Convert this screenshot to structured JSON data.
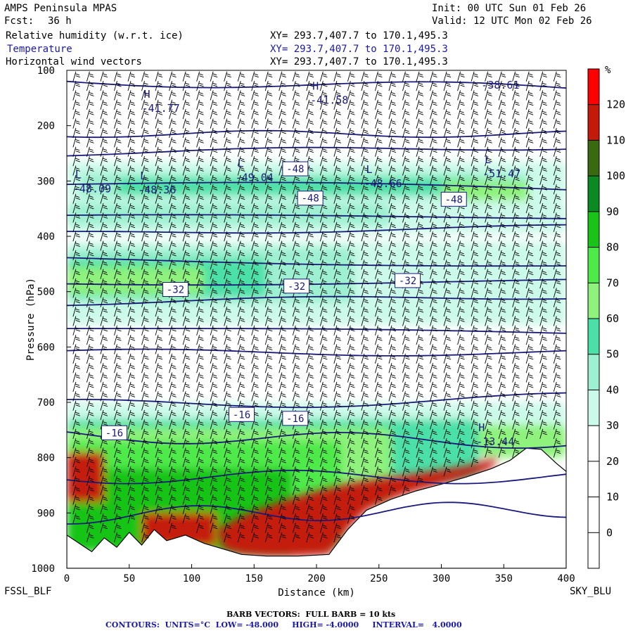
{
  "header": {
    "model": "AMPS Peninsula MPAS",
    "fcst_label": "Fcst:",
    "fcst_value": "36 h",
    "init": "Init: 00 UTC Sun 01 Feb 26",
    "valid": "Valid: 12 UTC Mon 02 Feb 26"
  },
  "fields": [
    {
      "label": "Relative humidity (w.r.t. ice)",
      "xy": "XY= 293.7,407.7 to 170.1,495.3",
      "color": "#000000"
    },
    {
      "label": "Temperature",
      "xy": "XY= 293.7,407.7 to 170.1,495.3",
      "color": "#1a1aa6"
    },
    {
      "label": "Horizontal wind vectors",
      "xy": "XY= 293.7,407.7 to 170.1,495.3",
      "color": "#000000"
    }
  ],
  "footer": {
    "left_station": "FSSL_BLF",
    "right_station": "SKY_BLU",
    "barb_note": "BARB VECTORS:  FULL BARB = 10 kts",
    "contours_note": "CONTOURS:  UNITS=°C  LOW= -48.000     HIGH= -4.0000     INTERVAL=   4.0000"
  },
  "chart_data": {
    "type": "heatmap",
    "xlabel": "Distance (km)",
    "ylabel": "Pressure (hPa)",
    "xlim": [
      0,
      400
    ],
    "ylim": [
      1000,
      100
    ],
    "xticks": [
      0,
      50,
      100,
      150,
      200,
      250,
      300,
      350,
      400
    ],
    "yticks": [
      100,
      200,
      300,
      400,
      500,
      600,
      700,
      800,
      900,
      1000
    ],
    "colorbar": {
      "unit": "%",
      "levels": [
        0,
        10,
        20,
        30,
        40,
        50,
        60,
        70,
        80,
        90,
        100,
        110,
        120
      ],
      "bands": [
        {
          "range": "<0",
          "color": "#ffffff"
        },
        {
          "range": "0-10",
          "color": "#ffffff"
        },
        {
          "range": "10-20",
          "color": "#ffffff"
        },
        {
          "range": "20-30",
          "color": "#ffffff"
        },
        {
          "range": "30-40",
          "color": "#ccfaea"
        },
        {
          "range": "40-50",
          "color": "#9ef0d2"
        },
        {
          "range": "50-60",
          "color": "#4be0a8"
        },
        {
          "range": "60-70",
          "color": "#8ef27c"
        },
        {
          "range": "70-80",
          "color": "#4eea4a"
        },
        {
          "range": "80-90",
          "color": "#18c418"
        },
        {
          "range": "90-100",
          "color": "#0c8a22"
        },
        {
          "range": "100-110",
          "color": "#3a6a10"
        },
        {
          "range": "110-120",
          "color": "#c41a0a"
        },
        {
          "range": ">120",
          "color": "#ff0000"
        }
      ]
    },
    "temperature_contours_c": [
      -48,
      -44,
      -40,
      -36,
      -32,
      -28,
      -24,
      -20,
      -16,
      -12,
      -8,
      -4
    ],
    "contour_labels": [
      {
        "text": "-48",
        "x": 183,
        "p": 278
      },
      {
        "text": "-48",
        "x": 195,
        "p": 331
      },
      {
        "text": "-48",
        "x": 310,
        "p": 333
      },
      {
        "text": "-32",
        "x": 87,
        "p": 496
      },
      {
        "text": "-32",
        "x": 184,
        "p": 490
      },
      {
        "text": "-32",
        "x": 273,
        "p": 480
      },
      {
        "text": "-16",
        "x": 140,
        "p": 722
      },
      {
        "text": "-16",
        "x": 183,
        "p": 729
      },
      {
        "text": "-16",
        "x": 38,
        "p": 755
      }
    ],
    "extrema": [
      {
        "kind": "H",
        "value": "-41.77",
        "x": 60,
        "p": 160
      },
      {
        "kind": "H",
        "value": "-41.58",
        "x": 195,
        "p": 145
      },
      {
        "kind": "L",
        "value": "-48.09",
        "x": 5,
        "p": 305
      },
      {
        "kind": "L",
        "value": "-48.36",
        "x": 57,
        "p": 307
      },
      {
        "kind": "L",
        "value": "-49.04",
        "x": 135,
        "p": 285
      },
      {
        "kind": "L",
        "value": "-48.66",
        "x": 238,
        "p": 296
      },
      {
        "kind": "L",
        "value": "-51.47",
        "x": 333,
        "p": 278
      },
      {
        "kind": "",
        "value": "-38.61",
        "x": 332,
        "p": 118
      },
      {
        "kind": "H",
        "value": "-13.44",
        "x": 328,
        "p": 762
      }
    ],
    "terrain_surface": [
      {
        "x": 0,
        "p": 940
      },
      {
        "x": 10,
        "p": 955
      },
      {
        "x": 20,
        "p": 970
      },
      {
        "x": 30,
        "p": 945
      },
      {
        "x": 40,
        "p": 962
      },
      {
        "x": 50,
        "p": 935
      },
      {
        "x": 60,
        "p": 958
      },
      {
        "x": 70,
        "p": 930
      },
      {
        "x": 80,
        "p": 950
      },
      {
        "x": 95,
        "p": 940
      },
      {
        "x": 110,
        "p": 955
      },
      {
        "x": 125,
        "p": 965
      },
      {
        "x": 140,
        "p": 975
      },
      {
        "x": 160,
        "p": 978
      },
      {
        "x": 185,
        "p": 978
      },
      {
        "x": 210,
        "p": 975
      },
      {
        "x": 225,
        "p": 930
      },
      {
        "x": 240,
        "p": 895
      },
      {
        "x": 260,
        "p": 875
      },
      {
        "x": 280,
        "p": 860
      },
      {
        "x": 300,
        "p": 848
      },
      {
        "x": 320,
        "p": 835
      },
      {
        "x": 340,
        "p": 820
      },
      {
        "x": 355,
        "p": 805
      },
      {
        "x": 368,
        "p": 783
      },
      {
        "x": 380,
        "p": 785
      },
      {
        "x": 392,
        "p": 810
      },
      {
        "x": 400,
        "p": 825
      }
    ]
  }
}
